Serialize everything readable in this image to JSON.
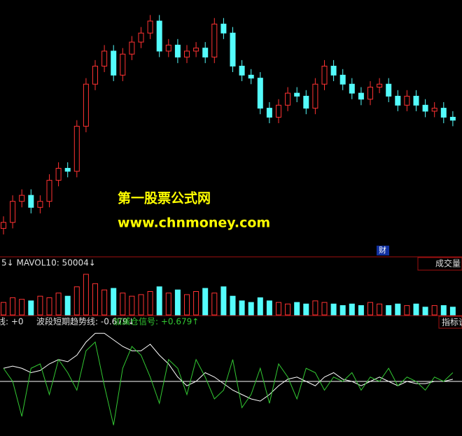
{
  "chart_data": [
    {
      "type": "candlestick",
      "annotations": [
        "第一股票公式网",
        "www.chnmoney.com",
        "财"
      ],
      "up_color": "#ff3232",
      "down_color": "#54fcfc",
      "ylim": [
        15,
        100
      ],
      "open": [
        24,
        26,
        33,
        35,
        31,
        33,
        40,
        44,
        43,
        58,
        72,
        78,
        83,
        75,
        82,
        86,
        89,
        93,
        83,
        85,
        81,
        83,
        84,
        81,
        92,
        89,
        78,
        75,
        74,
        64,
        61,
        65,
        69,
        68,
        64,
        72,
        78,
        75,
        72,
        69,
        67,
        71,
        72,
        68,
        65,
        68,
        65,
        63,
        64,
        61
      ],
      "close": [
        26,
        33,
        35,
        31,
        33,
        40,
        44,
        43,
        58,
        72,
        78,
        83,
        75,
        82,
        86,
        89,
        93,
        83,
        85,
        81,
        83,
        84,
        81,
        92,
        89,
        78,
        75,
        74,
        64,
        61,
        65,
        69,
        68,
        64,
        72,
        78,
        75,
        72,
        69,
        67,
        71,
        72,
        68,
        65,
        68,
        65,
        63,
        64,
        61,
        60
      ],
      "high": [
        28,
        35,
        37,
        37,
        35,
        42,
        46,
        46,
        60,
        74,
        80,
        85,
        85,
        84,
        88,
        91,
        95,
        95,
        87,
        87,
        85,
        86,
        86,
        94,
        94,
        91,
        80,
        77,
        76,
        66,
        67,
        71,
        71,
        70,
        74,
        80,
        80,
        77,
        74,
        71,
        73,
        74,
        74,
        70,
        70,
        70,
        67,
        66,
        66,
        63
      ],
      "low": [
        22,
        24,
        31,
        29,
        29,
        31,
        38,
        41,
        41,
        56,
        70,
        76,
        73,
        73,
        80,
        84,
        87,
        81,
        81,
        79,
        79,
        81,
        79,
        79,
        87,
        76,
        73,
        72,
        62,
        59,
        59,
        63,
        66,
        62,
        62,
        70,
        73,
        70,
        67,
        65,
        65,
        69,
        66,
        63,
        63,
        63,
        61,
        61,
        59,
        58
      ]
    },
    {
      "type": "bar",
      "legend": "5↓ MAVOL10: 50004↓",
      "title": "成交量",
      "ylim": [
        0,
        150000
      ],
      "values": [
        40000,
        55000,
        50000,
        45000,
        60000,
        55000,
        70000,
        60000,
        90000,
        130000,
        100000,
        80000,
        85000,
        70000,
        60000,
        65000,
        75000,
        90000,
        70000,
        80000,
        65000,
        75000,
        85000,
        70000,
        90000,
        60000,
        45000,
        40000,
        55000,
        45000,
        40000,
        35000,
        40000,
        35000,
        45000,
        40000,
        35000,
        30000,
        35000,
        30000,
        40000,
        35000,
        30000,
        35000,
        30000,
        35000,
        25000,
        30000,
        30000,
        25000
      ]
    },
    {
      "type": "line",
      "legend": [
        "线: +0",
        "波段短期趋势线: -0.679↓",
        "加减仓信号: +0.679↑"
      ],
      "title": "指标说",
      "ylim": [
        -1.2,
        1.2
      ],
      "series": [
        {
          "color": "#ffffff",
          "values": [
            0.3,
            0.35,
            0.3,
            0.2,
            0.25,
            0.4,
            0.5,
            0.45,
            0.6,
            0.9,
            1.1,
            1.1,
            0.95,
            0.8,
            0.7,
            0.7,
            0.85,
            0.6,
            0.4,
            0.1,
            -0.1,
            0.0,
            0.2,
            0.1,
            -0.05,
            -0.2,
            -0.3,
            -0.4,
            -0.45,
            -0.3,
            -0.1,
            0.05,
            0.1,
            0.0,
            -0.1,
            0.1,
            0.2,
            0.05,
            0.0,
            -0.1,
            0.0,
            0.1,
            0.0,
            -0.1,
            0.0,
            -0.05,
            -0.05,
            0.0,
            0.0,
            0.05
          ]
        },
        {
          "color": "#32c832",
          "values": [
            0.3,
            0.0,
            -0.8,
            0.3,
            0.4,
            -0.3,
            0.5,
            0.2,
            -0.2,
            0.7,
            0.9,
            -0.1,
            -1.0,
            0.3,
            0.8,
            0.6,
            0.1,
            -0.5,
            0.5,
            0.3,
            -0.3,
            0.5,
            0.1,
            -0.4,
            -0.2,
            0.5,
            -0.6,
            -0.3,
            0.3,
            -0.5,
            0.4,
            0.1,
            -0.4,
            0.3,
            0.2,
            -0.2,
            0.1,
            0.0,
            0.2,
            -0.2,
            0.1,
            0.0,
            0.3,
            -0.1,
            0.1,
            0.0,
            -0.2,
            0.1,
            0.0,
            0.2
          ]
        }
      ]
    }
  ]
}
